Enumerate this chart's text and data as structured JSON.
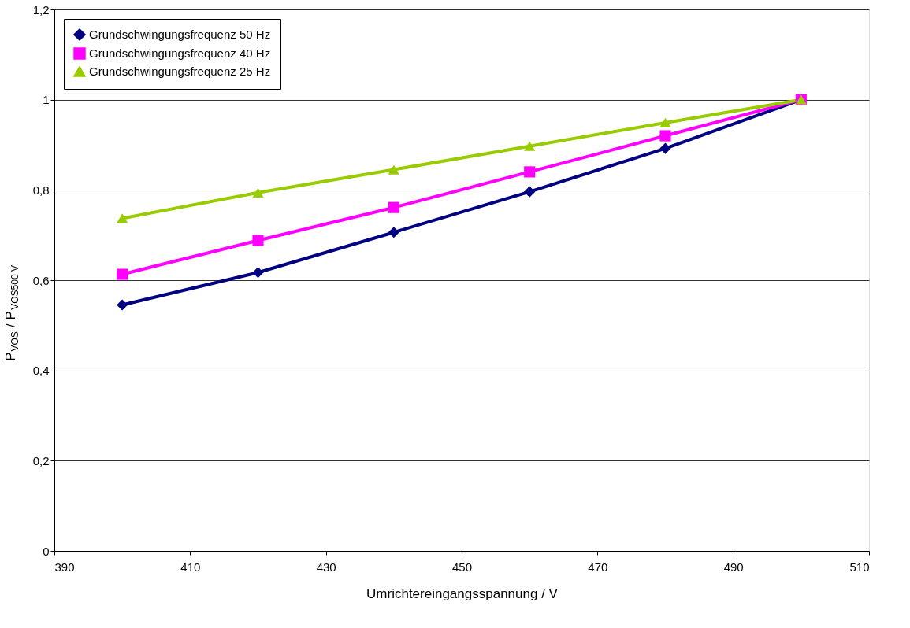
{
  "chart_data": {
    "type": "line",
    "xlabel": "Umrichtereingangsspannung / V",
    "ylabel": "P$_{VOS}$ / P$_{VOS500 V}$",
    "x": [
      400,
      420,
      440,
      460,
      480,
      500
    ],
    "series": [
      {
        "name": "Grundschwingungsfrequenz 50 Hz",
        "color": "#000080",
        "marker": "diamond",
        "values": [
          0.545,
          0.617,
          0.706,
          0.796,
          0.892,
          1.0
        ]
      },
      {
        "name": "Grundschwingungsfrequenz 40 Hz",
        "color": "#ff00ff",
        "marker": "square",
        "values": [
          0.613,
          0.688,
          0.761,
          0.84,
          0.92,
          1.0
        ]
      },
      {
        "name": "Grundschwingungsfrequenz 25 Hz",
        "color": "#99cc00",
        "marker": "triangle",
        "values": [
          0.737,
          0.794,
          0.845,
          0.897,
          0.949,
          1.0
        ]
      }
    ],
    "xlim": [
      390,
      510
    ],
    "xticks": [
      390,
      410,
      430,
      450,
      470,
      490,
      510
    ],
    "ylim": [
      0,
      1.2
    ],
    "yticks": [
      0,
      {
        "value": 0.2,
        "label": "0,2"
      },
      {
        "value": 0.4,
        "label": "0,4"
      },
      {
        "value": 0.6,
        "label": "0,6"
      },
      {
        "value": 0.8,
        "label": "0,8"
      },
      1,
      {
        "value": 1.2,
        "label": "1,2"
      }
    ],
    "grid": "y",
    "legend": "top left",
    "line_style": "solid"
  }
}
